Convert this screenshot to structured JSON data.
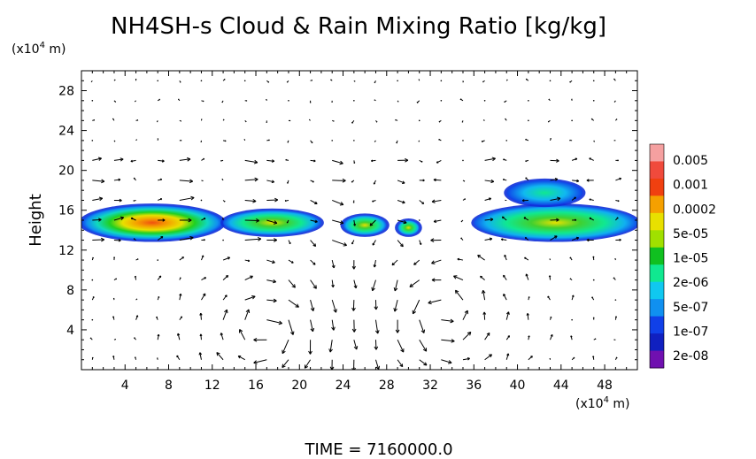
{
  "chart_data": {
    "type": "heatmap",
    "title": "NH4SH-s Cloud & Rain Mixing Ratio [kg/kg]",
    "ylabel": "Height",
    "y_unit": "(x10⁴ m)",
    "x_unit": "(x10⁴ m)",
    "footer": "TIME = 7160000.0",
    "x_range": [
      0,
      51
    ],
    "y_range": [
      0,
      30
    ],
    "x_ticks": [
      4,
      8,
      12,
      16,
      20,
      24,
      28,
      32,
      36,
      40,
      44,
      48
    ],
    "y_ticks": [
      4,
      8,
      12,
      16,
      20,
      24,
      28
    ],
    "x_tick_labels": [
      "4",
      "8",
      "12",
      "16",
      "20",
      "24",
      "28",
      "32",
      "36",
      "40",
      "44",
      "48"
    ],
    "y_tick_labels": [
      "4",
      "8",
      "12",
      "16",
      "20",
      "24",
      "28"
    ],
    "colorbar": {
      "labels": [
        "0.005",
        "0.001",
        "0.0002",
        "5e-05",
        "1e-05",
        "2e-06",
        "5e-07",
        "1e-07",
        "2e-08"
      ],
      "colors": [
        "#f5a0a0",
        "#f04a3c",
        "#f04010",
        "#f5a000",
        "#e8e000",
        "#a0e000",
        "#10c020",
        "#10e890",
        "#10c8f0",
        "#1090f0",
        "#1040e8",
        "#1020c0",
        "#7010b0"
      ]
    },
    "cloud_regions": [
      {
        "x": [
          0,
          13
        ],
        "y": [
          13,
          16.5
        ],
        "peak": "0.0002"
      },
      {
        "x": [
          13,
          22
        ],
        "y": [
          13.5,
          16
        ],
        "peak": "1e-05"
      },
      {
        "x": [
          24,
          28
        ],
        "y": [
          13.5,
          15.5
        ],
        "peak": "1e-05"
      },
      {
        "x": [
          29,
          31
        ],
        "y": [
          13.5,
          15
        ],
        "peak": "1e-05"
      },
      {
        "x": [
          36,
          51
        ],
        "y": [
          13,
          16.5
        ],
        "peak": "5e-05"
      },
      {
        "x": [
          39,
          46
        ],
        "y": [
          16.5,
          19
        ],
        "peak": "5e-07"
      }
    ],
    "grid": false,
    "overlay": "wind vectors"
  }
}
